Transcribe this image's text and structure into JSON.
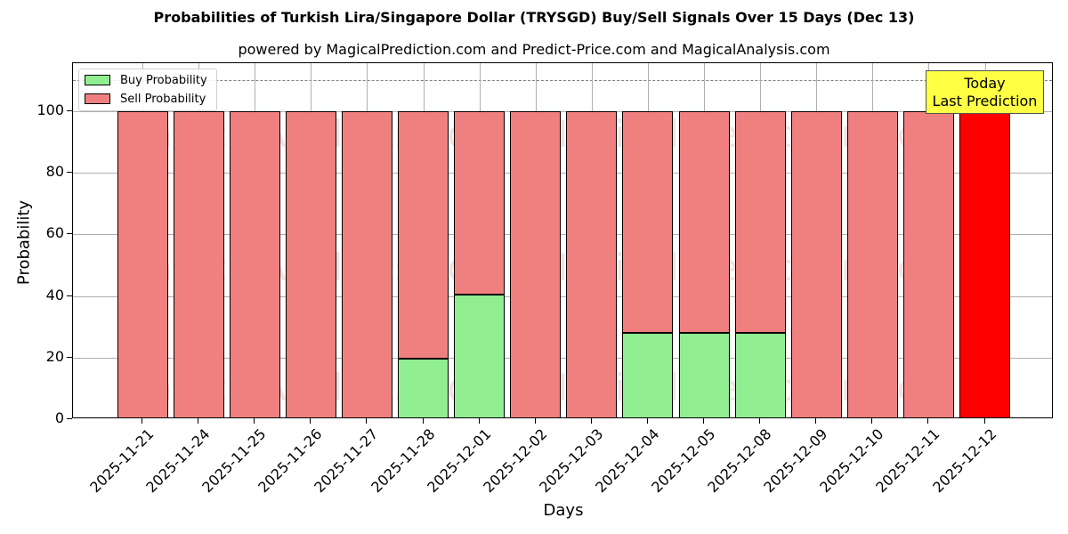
{
  "chart_data": {
    "type": "bar",
    "stacked": true,
    "title": "Probabilities of Turkish Lira/Singapore Dollar (TRYSGD) Buy/Sell Signals Over 15 Days (Dec 13)",
    "subtitle": "powered by MagicalPrediction.com and Predict-Price.com and MagicalAnalysis.com",
    "xlabel": "Days",
    "ylabel": "Probability",
    "ylim": [
      0,
      115
    ],
    "yticks": [
      0,
      20,
      40,
      60,
      80,
      100
    ],
    "grid": true,
    "legend_position": "upper left",
    "categories": [
      "2025-11-21",
      "2025-11-24",
      "2025-11-25",
      "2025-11-26",
      "2025-11-27",
      "2025-11-28",
      "2025-12-01",
      "2025-12-02",
      "2025-12-03",
      "2025-12-04",
      "2025-12-05",
      "2025-12-08",
      "2025-12-09",
      "2025-12-10",
      "2025-12-11",
      "2025-12-12"
    ],
    "series": [
      {
        "name": "Buy Probability",
        "color": "#90ee90",
        "values": [
          0,
          0,
          0,
          0,
          0,
          19.7,
          40.5,
          0,
          0,
          28.0,
          28.0,
          28.0,
          0,
          0,
          0,
          0
        ]
      },
      {
        "name": "Sell Probability",
        "color": "#f08080",
        "values": [
          100,
          100,
          100,
          100,
          100,
          80.3,
          59.5,
          100,
          100,
          72.0,
          72.0,
          72.0,
          100,
          100,
          100,
          100
        ]
      }
    ],
    "highlight": {
      "index": 15,
      "color": "#ff0000"
    },
    "reference_line": {
      "y": 110,
      "style": "dashed",
      "color": "#808080"
    },
    "annotation": {
      "line1": "Today",
      "line2": "Last Prediction",
      "background": "#ffff44"
    },
    "watermarks": [
      "MagicalAnalysis.com",
      "MagicalPrediction.com"
    ]
  },
  "legend": {
    "buy_label": "Buy Probability",
    "sell_label": "Sell Probability"
  },
  "annotation": {
    "line1": "Today",
    "line2": "Last Prediction"
  },
  "yticks_labels": [
    "0",
    "20",
    "40",
    "60",
    "80",
    "100"
  ]
}
